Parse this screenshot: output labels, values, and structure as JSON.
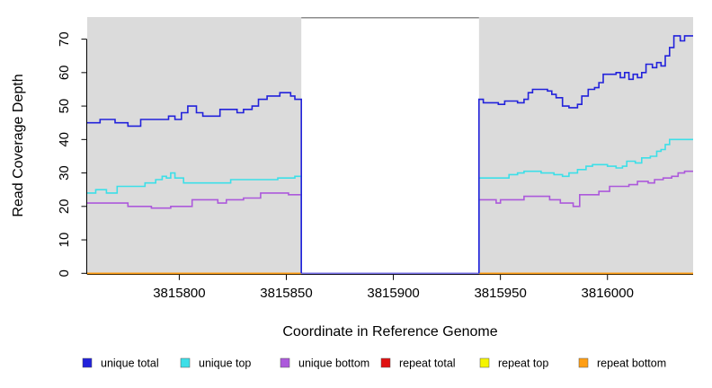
{
  "chart_data": {
    "type": "line",
    "subtype": "step-coverage",
    "title": "",
    "xlabel": "Coordinate in Reference Genome",
    "ylabel": "Read Coverage Depth",
    "xlim": [
      3815757,
      3816040
    ],
    "ylim": [
      0,
      76.5
    ],
    "xticks": [
      3815800,
      3815850,
      3815900,
      3815950,
      3816000
    ],
    "yticks": [
      0,
      10,
      20,
      30,
      40,
      50,
      60,
      70
    ],
    "grid": false,
    "legend_position": "bottom",
    "colors": {
      "background": "#FFFFFF",
      "panel_bg": "#DBDBDB",
      "axis": "#000000",
      "gap_top_border": "#8C8C8C",
      "gap_baseline": "#7B74EA"
    },
    "gap_region": {
      "start": 3815857,
      "end": 3815940,
      "baseline_value": 0
    },
    "series": [
      {
        "name": "unique total",
        "color": "#2222DB",
        "segments": [
          {
            "drop_start": false,
            "drop_end": true,
            "end": 3815857,
            "pts": [
              [
                3815757,
                45
              ],
              [
                3815763,
                46
              ],
              [
                3815770,
                45
              ],
              [
                3815776,
                44
              ],
              [
                3815782,
                46
              ],
              [
                3815795,
                47
              ],
              [
                3815798,
                46
              ],
              [
                3815801,
                48
              ],
              [
                3815804,
                50
              ],
              [
                3815808,
                48
              ],
              [
                3815811,
                47
              ],
              [
                3815819,
                49
              ],
              [
                3815827,
                48
              ],
              [
                3815830,
                49
              ],
              [
                3815834,
                50
              ],
              [
                3815837,
                52
              ],
              [
                3815841,
                53
              ],
              [
                3815847,
                54
              ],
              [
                3815852,
                53
              ],
              [
                3815854,
                52
              ]
            ]
          },
          {
            "drop_start": true,
            "drop_end": false,
            "end": 3816040,
            "pts": [
              [
                3815940,
                52
              ],
              [
                3815942,
                51
              ],
              [
                3815949,
                50.5
              ],
              [
                3815952,
                51.5
              ],
              [
                3815958,
                51
              ],
              [
                3815961,
                52
              ],
              [
                3815963,
                54
              ],
              [
                3815965,
                55
              ],
              [
                3815972,
                54.5
              ],
              [
                3815974,
                53.5
              ],
              [
                3815976,
                52.5
              ],
              [
                3815979,
                50
              ],
              [
                3815982,
                49.5
              ],
              [
                3815986,
                50.5
              ],
              [
                3815988,
                53
              ],
              [
                3815991,
                55
              ],
              [
                3815994,
                55.5
              ],
              [
                3815996,
                57
              ],
              [
                3815998,
                59.5
              ],
              [
                3816004,
                60
              ],
              [
                3816006,
                58.5
              ],
              [
                3816008,
                60
              ],
              [
                3816010,
                58
              ],
              [
                3816012,
                59.5
              ],
              [
                3816014,
                58.5
              ],
              [
                3816016,
                60
              ],
              [
                3816018,
                62.5
              ],
              [
                3816021,
                61.5
              ],
              [
                3816023,
                63
              ],
              [
                3816025,
                62
              ],
              [
                3816027,
                65
              ],
              [
                3816029,
                67.5
              ],
              [
                3816031,
                71
              ],
              [
                3816034,
                69.5
              ],
              [
                3816036,
                71
              ]
            ]
          }
        ]
      },
      {
        "name": "unique top",
        "color": "#3CDFE8",
        "segments": [
          {
            "drop_start": false,
            "drop_end": true,
            "end": 3815857,
            "pts": [
              [
                3815757,
                24
              ],
              [
                3815761,
                25
              ],
              [
                3815766,
                24
              ],
              [
                3815771,
                26
              ],
              [
                3815784,
                27
              ],
              [
                3815789,
                28
              ],
              [
                3815792,
                29
              ],
              [
                3815794,
                28.5
              ],
              [
                3815796,
                30
              ],
              [
                3815798,
                28.5
              ],
              [
                3815802,
                27
              ],
              [
                3815824,
                28
              ],
              [
                3815846,
                28.5
              ],
              [
                3815854,
                29
              ]
            ]
          },
          {
            "drop_start": true,
            "drop_end": false,
            "end": 3816040,
            "pts": [
              [
                3815940,
                28.5
              ],
              [
                3815954,
                29.5
              ],
              [
                3815958,
                30
              ],
              [
                3815961,
                30.5
              ],
              [
                3815969,
                30
              ],
              [
                3815975,
                29.5
              ],
              [
                3815979,
                29
              ],
              [
                3815982,
                30
              ],
              [
                3815986,
                31
              ],
              [
                3815990,
                32
              ],
              [
                3815993,
                32.5
              ],
              [
                3816000,
                32
              ],
              [
                3816004,
                31.5
              ],
              [
                3816007,
                32
              ],
              [
                3816009,
                33.5
              ],
              [
                3816013,
                33
              ],
              [
                3816016,
                34.5
              ],
              [
                3816020,
                35
              ],
              [
                3816023,
                36.5
              ],
              [
                3816025,
                37
              ],
              [
                3816027,
                38.5
              ],
              [
                3816029,
                40
              ]
            ]
          }
        ]
      },
      {
        "name": "unique bottom",
        "color": "#AC59DB",
        "segments": [
          {
            "drop_start": false,
            "drop_end": true,
            "end": 3815857,
            "pts": [
              [
                3815757,
                21
              ],
              [
                3815776,
                20
              ],
              [
                3815787,
                19.5
              ],
              [
                3815796,
                20
              ],
              [
                3815806,
                22
              ],
              [
                3815818,
                21
              ],
              [
                3815822,
                22
              ],
              [
                3815830,
                22.5
              ],
              [
                3815838,
                24
              ],
              [
                3815851,
                23.5
              ]
            ]
          },
          {
            "drop_start": true,
            "drop_end": false,
            "end": 3816040,
            "pts": [
              [
                3815940,
                22
              ],
              [
                3815948,
                21
              ],
              [
                3815950,
                22
              ],
              [
                3815961,
                23
              ],
              [
                3815973,
                22
              ],
              [
                3815978,
                21
              ],
              [
                3815984,
                20
              ],
              [
                3815987,
                23.5
              ],
              [
                3815996,
                24.5
              ],
              [
                3816001,
                26
              ],
              [
                3816010,
                26.5
              ],
              [
                3816014,
                27.5
              ],
              [
                3816019,
                27
              ],
              [
                3816022,
                28
              ],
              [
                3816026,
                28.5
              ],
              [
                3816030,
                29
              ],
              [
                3816033,
                30
              ],
              [
                3816036,
                30.5
              ]
            ]
          }
        ]
      },
      {
        "name": "repeat total",
        "color": "#E01111",
        "segments": [
          {
            "drop_start": false,
            "drop_end": false,
            "end": 3815857,
            "pts": [
              [
                3815757,
                0
              ]
            ]
          },
          {
            "drop_start": false,
            "drop_end": false,
            "end": 3816040,
            "pts": [
              [
                3815940,
                0
              ]
            ]
          }
        ]
      },
      {
        "name": "repeat top",
        "color": "#F5F500",
        "segments": [
          {
            "drop_start": false,
            "drop_end": false,
            "end": 3815857,
            "pts": [
              [
                3815757,
                0
              ]
            ]
          },
          {
            "drop_start": false,
            "drop_end": false,
            "end": 3816040,
            "pts": [
              [
                3815940,
                0
              ]
            ]
          }
        ]
      },
      {
        "name": "repeat bottom",
        "color": "#FF9E14",
        "segments": [
          {
            "drop_start": false,
            "drop_end": false,
            "end": 3815857,
            "pts": [
              [
                3815757,
                0
              ]
            ]
          },
          {
            "drop_start": false,
            "drop_end": false,
            "end": 3816040,
            "pts": [
              [
                3815940,
                0
              ]
            ]
          }
        ]
      }
    ],
    "legend": [
      {
        "label": "unique total"
      },
      {
        "label": "unique top"
      },
      {
        "label": "unique bottom"
      },
      {
        "label": "repeat total"
      },
      {
        "label": "repeat top"
      },
      {
        "label": "repeat bottom"
      }
    ]
  }
}
